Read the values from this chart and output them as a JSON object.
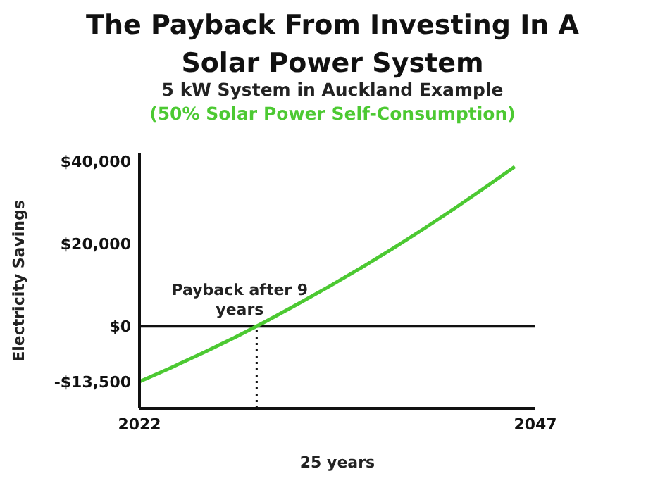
{
  "chart_data": {
    "type": "line",
    "title": "The Payback From Investing In A Solar Power System",
    "subtitle": "5 kW System in Auckland Example",
    "annotations": [
      "(50% Solar Power Self-Consumption)",
      {
        "text": "Payback after 9 years",
        "x": 2029.4,
        "y": 0
      }
    ],
    "xlabel": "25 years",
    "ylabel": "Electricity Savings",
    "x": [
      2022,
      2024,
      2026,
      2028,
      2029.4,
      2030,
      2032,
      2034,
      2036,
      2038,
      2040,
      2042,
      2044,
      2045.7
    ],
    "series": [
      {
        "color": "#4cc932",
        "values": [
          -13500,
          -10100,
          -6500,
          -2800,
          0,
          1200,
          5400,
          9700,
          14200,
          18900,
          23800,
          28900,
          34200,
          38800
        ]
      }
    ],
    "xlim": [
      2022,
      2047
    ],
    "xticks": [
      2022,
      2047
    ],
    "ylim": [
      -20000,
      42000
    ],
    "yticks": [
      {
        "value": 40000,
        "label": "$40,000"
      },
      {
        "value": 20000,
        "label": "$20,000"
      },
      {
        "value": 0,
        "label": "$0"
      },
      {
        "value": -13500,
        "label": "-$13,500"
      }
    ],
    "ref_lines": [
      {
        "axis": "y",
        "value": 0,
        "color": "#111111",
        "line_style": "solid"
      },
      {
        "axis": "x",
        "value": 2029.4,
        "color": "#111111",
        "line_style": "dotted"
      }
    ],
    "grid": false
  }
}
